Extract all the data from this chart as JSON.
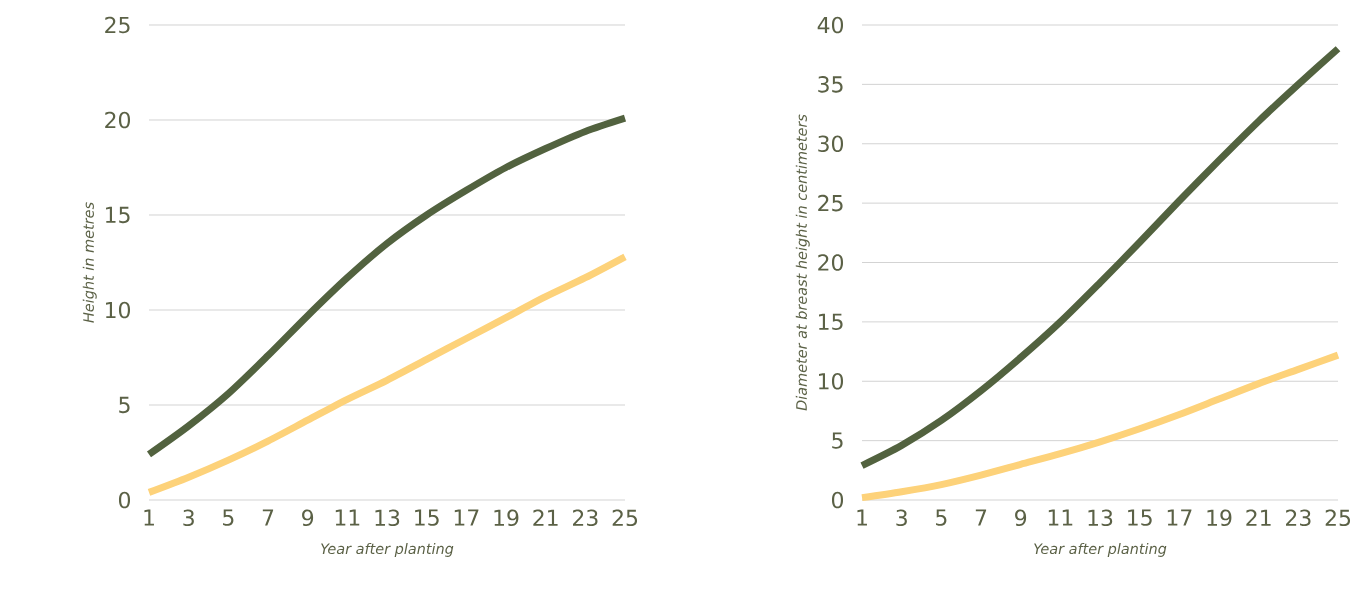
{
  "chart_data": [
    {
      "type": "line",
      "xlabel": "Year after planting",
      "ylabel": "Height in metres",
      "x": [
        1,
        3,
        5,
        7,
        9,
        11,
        13,
        15,
        17,
        19,
        21,
        23,
        25
      ],
      "xlim": [
        1,
        25
      ],
      "xticks": [
        1,
        3,
        5,
        7,
        9,
        11,
        13,
        15,
        17,
        19,
        21,
        23,
        25
      ],
      "ylim": [
        0,
        25
      ],
      "yticks": [
        0,
        5,
        10,
        15,
        20,
        25
      ],
      "grid": "y",
      "series": [
        {
          "color": "#52623f",
          "values": [
            2.4,
            3.9,
            5.6,
            7.6,
            9.7,
            11.7,
            13.5,
            15.0,
            16.3,
            17.5,
            18.5,
            19.4,
            20.1
          ]
        },
        {
          "color": "#fdd27a",
          "values": [
            0.4,
            1.2,
            2.1,
            3.1,
            4.2,
            5.3,
            6.3,
            7.4,
            8.5,
            9.6,
            10.7,
            11.7,
            12.8
          ]
        }
      ]
    },
    {
      "type": "line",
      "xlabel": "Year after planting",
      "ylabel": "Diameter at breast height in centimeters",
      "x": [
        1,
        3,
        5,
        7,
        9,
        11,
        13,
        15,
        17,
        19,
        21,
        23,
        25
      ],
      "xlim": [
        1,
        25
      ],
      "xticks": [
        1,
        3,
        5,
        7,
        9,
        11,
        13,
        15,
        17,
        19,
        21,
        23,
        25
      ],
      "ylim": [
        0,
        40
      ],
      "yticks": [
        0,
        5,
        10,
        15,
        20,
        25,
        30,
        35,
        40
      ],
      "grid": "y",
      "series": [
        {
          "color": "#52623f",
          "values": [
            2.9,
            4.6,
            6.7,
            9.2,
            12.0,
            15.0,
            18.3,
            21.7,
            25.2,
            28.6,
            31.9,
            35.0,
            38.0
          ]
        },
        {
          "color": "#fdd27a",
          "values": [
            0.2,
            0.7,
            1.3,
            2.1,
            3.0,
            3.9,
            4.9,
            6.0,
            7.2,
            8.5,
            9.8,
            11.0,
            12.2
          ]
        }
      ]
    }
  ]
}
